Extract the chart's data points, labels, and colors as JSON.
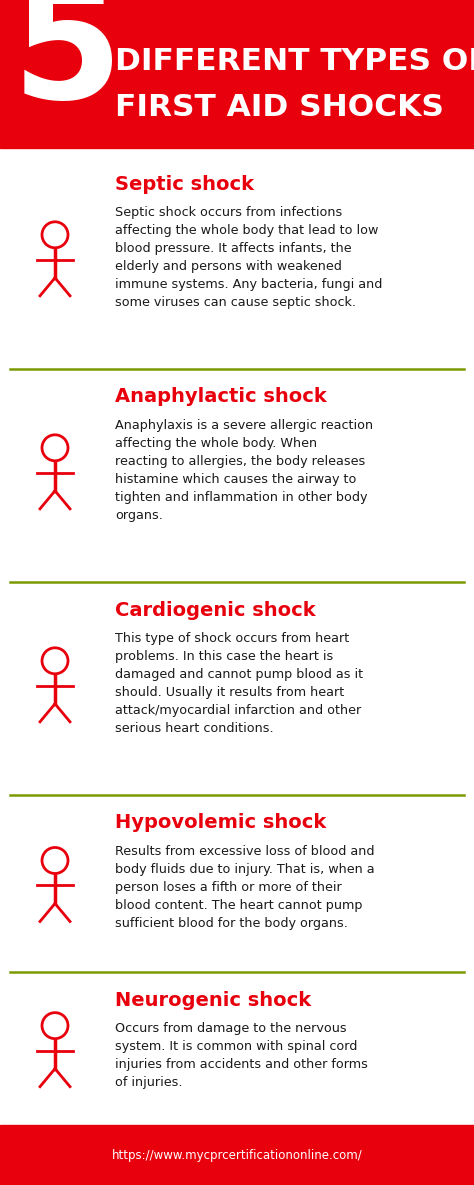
{
  "title_number": "5",
  "title_line1": "DIFFERENT TYPES OF",
  "title_line2": "FIRST AID SHOCKS",
  "title_bg": "#e8000d",
  "title_text_color": "#ffffff",
  "body_bg": "#ffffff",
  "footer_bg": "#e8000d",
  "footer_text": "https://www.mycprcertificationonline.com/",
  "footer_text_color": "#ffffff",
  "divider_color": "#7a9a01",
  "section_title_color": "#e8000d",
  "body_text_color": "#1a1a1a",
  "sections": [
    {
      "title": "Septic shock",
      "body": "Septic shock occurs from infections\naffecting the whole body that lead to low\nblood pressure. It affects infants, the\nelderly and persons with weakened\nimmune systems. Any bacteria, fungi and\nsome viruses can cause septic shock."
    },
    {
      "title": "Anaphylactic shock",
      "body": "Anaphylaxis is a severe allergic reaction\naffecting the whole body. When\nreacting to allergies, the body releases\nhistamine which causes the airway to\ntighten and inflammation in other body\norgans."
    },
    {
      "title": "Cardiogenic shock",
      "body": "This type of shock occurs from heart\nproblems. In this case the heart is\ndamaged and cannot pump blood as it\nshould. Usually it results from heart\nattack/myocardial infarction and other\nserious heart conditions."
    },
    {
      "title": "Hypovolemic shock",
      "body": "Results from excessive loss of blood and\nbody fluids due to injury. That is, when a\nperson loses a fifth or more of their\nblood content. The heart cannot pump\nsufficient blood for the body organs."
    },
    {
      "title": "Neurogenic shock",
      "body": "Occurs from damage to the nervous\nsystem. It is common with spinal cord\ninjuries from accidents and other forms\nof injuries."
    }
  ]
}
